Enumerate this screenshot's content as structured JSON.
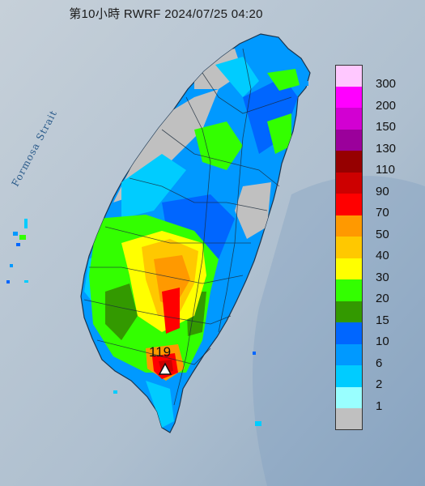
{
  "title": "第10小時  RWRF 2024/07/25 04:20",
  "strait_label": "Formosa Strait",
  "peak": {
    "value": "119",
    "marker_icon": "triangle-marker-icon"
  },
  "legend": [
    {
      "label": "300",
      "color": "#ffc8ff"
    },
    {
      "label": "200",
      "color": "#ff00ff"
    },
    {
      "label": "150",
      "color": "#d200d2"
    },
    {
      "label": "130",
      "color": "#9b009b"
    },
    {
      "label": "110",
      "color": "#960000"
    },
    {
      "label": "90",
      "color": "#cd0000"
    },
    {
      "label": "70",
      "color": "#ff0000"
    },
    {
      "label": "50",
      "color": "#ff9900"
    },
    {
      "label": "40",
      "color": "#ffc800"
    },
    {
      "label": "30",
      "color": "#ffff00"
    },
    {
      "label": "20",
      "color": "#33ff00"
    },
    {
      "label": "15",
      "color": "#339900"
    },
    {
      "label": "10",
      "color": "#0066ff"
    },
    {
      "label": "6",
      "color": "#0099ff"
    },
    {
      "label": "2",
      "color": "#00ccff"
    },
    {
      "label": "1",
      "color": "#99ffff"
    },
    {
      "label": "",
      "color": "#c0c0c0"
    }
  ]
}
